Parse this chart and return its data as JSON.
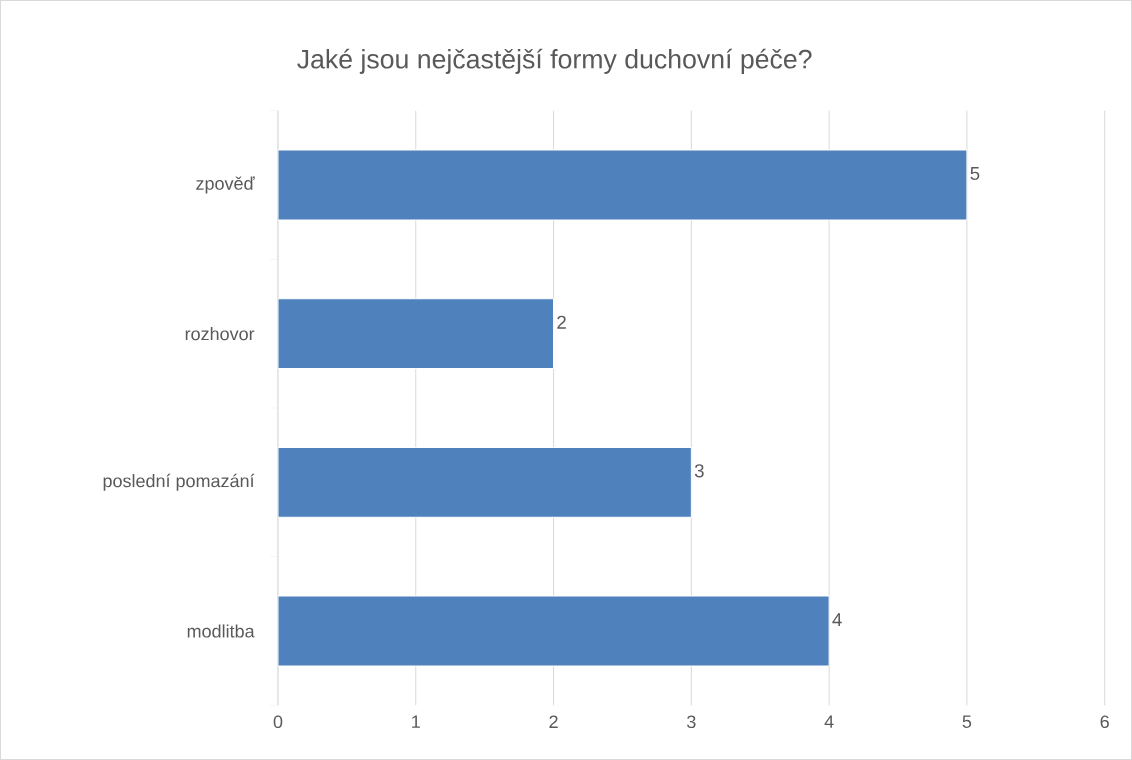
{
  "chart_data": {
    "type": "bar",
    "orientation": "horizontal",
    "title": "Jaké jsou nejčastější formy duchovní péče?",
    "categories": [
      "zpověď",
      "rozhovor",
      "poslední pomazání",
      "modlitba"
    ],
    "values": [
      5,
      2,
      3,
      4
    ],
    "color": "#4f81bd",
    "xlim": [
      0,
      6
    ],
    "xticks": [
      0,
      1,
      2,
      3,
      4,
      5,
      6
    ],
    "grid": "x",
    "data_labels": true
  }
}
